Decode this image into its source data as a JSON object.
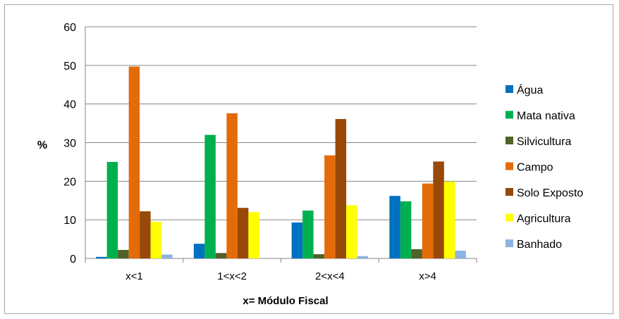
{
  "chart_data": {
    "type": "bar",
    "title": "",
    "xlabel": "x= Módulo Fiscal",
    "ylabel": "%",
    "ylim": [
      0,
      60
    ],
    "yticks": [
      0,
      10,
      20,
      30,
      40,
      50,
      60
    ],
    "grid": true,
    "legend_position": "right",
    "categories": [
      "x<1",
      "1<x<2",
      "2<x<4",
      "x>4"
    ],
    "series": [
      {
        "name": "Água",
        "color": "#0070c0",
        "values": [
          0.4,
          3.8,
          9.3,
          16.2
        ]
      },
      {
        "name": "Mata nativa",
        "color": "#00b050",
        "values": [
          25.0,
          32.0,
          12.4,
          14.8
        ]
      },
      {
        "name": "Silvicultura",
        "color": "#4f6228",
        "values": [
          2.2,
          1.4,
          1.1,
          2.4
        ]
      },
      {
        "name": "Campo",
        "color": "#e36c09",
        "values": [
          49.7,
          37.6,
          26.7,
          19.4
        ]
      },
      {
        "name": "Solo Exposto",
        "color": "#984807",
        "values": [
          12.2,
          13.1,
          36.1,
          25.1
        ]
      },
      {
        "name": "Agricultura",
        "color": "#ffff00",
        "values": [
          9.5,
          12.0,
          13.8,
          19.9
        ]
      },
      {
        "name": "Banhado",
        "color": "#8db3e2",
        "values": [
          1.0,
          0.0,
          0.6,
          2.0
        ]
      }
    ]
  }
}
